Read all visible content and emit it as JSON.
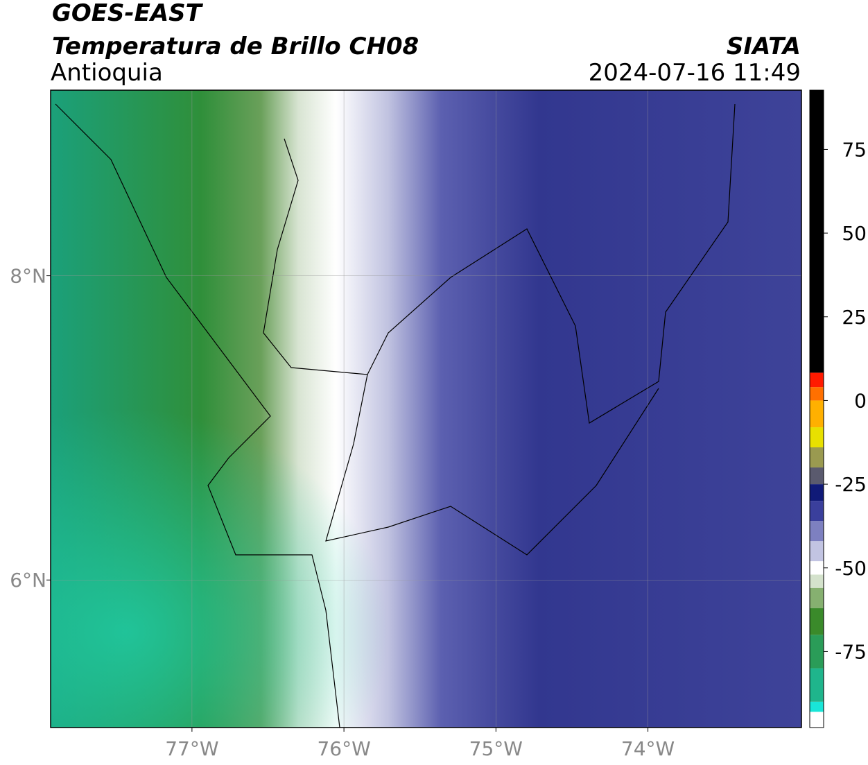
{
  "header": {
    "title": "GOES-EAST",
    "subtitle": "Temperatura de Brillo CH08",
    "source": "SIATA",
    "region": "Antioquia",
    "timestamp": "2024-07-16 11:49"
  },
  "map": {
    "xlim": [
      -77.93,
      -72.99
    ],
    "ylim": [
      5.03,
      9.22
    ],
    "xticks": [
      {
        "value": -77,
        "label": "77°W"
      },
      {
        "value": -76,
        "label": "76°W"
      },
      {
        "value": -75,
        "label": "75°W"
      },
      {
        "value": -74,
        "label": "74°W"
      }
    ],
    "yticks": [
      {
        "value": 8,
        "label": "8°N"
      },
      {
        "value": 6,
        "label": "6°N"
      }
    ],
    "grid": true
  },
  "colorbar": {
    "ylim": [
      -97.7,
      92.7
    ],
    "ticks": [
      75,
      50,
      25,
      0,
      -25,
      -50,
      -75
    ],
    "stops": [
      {
        "from": -97.7,
        "to": -93,
        "color": "#ffffff"
      },
      {
        "from": -93,
        "to": -90,
        "color": "#19e6d8"
      },
      {
        "from": -90,
        "to": -80,
        "color": "#1fb58c"
      },
      {
        "from": -80,
        "to": -70,
        "color": "#2a9c58"
      },
      {
        "from": -70,
        "to": -62,
        "color": "#3a8a2a"
      },
      {
        "from": -62,
        "to": -56,
        "color": "#86b070"
      },
      {
        "from": -56,
        "to": -52,
        "color": "#d4e2cc"
      },
      {
        "from": -52,
        "to": -48,
        "color": "#ffffff"
      },
      {
        "from": -48,
        "to": -42,
        "color": "#c2c4e2"
      },
      {
        "from": -42,
        "to": -36,
        "color": "#7d80c0"
      },
      {
        "from": -36,
        "to": -30,
        "color": "#3a3f9c"
      },
      {
        "from": -30,
        "to": -25,
        "color": "#101a78"
      },
      {
        "from": -25,
        "to": -20,
        "color": "#5a5a6e"
      },
      {
        "from": -20,
        "to": -14,
        "color": "#9a9a50"
      },
      {
        "from": -14,
        "to": -8,
        "color": "#e8e000"
      },
      {
        "from": -8,
        "to": 0,
        "color": "#ffb000"
      },
      {
        "from": 0,
        "to": 4,
        "color": "#ff7000"
      },
      {
        "from": 4,
        "to": 8.3,
        "color": "#ff1a00"
      },
      {
        "from": 8.3,
        "to": 92.7,
        "color": "#000000"
      }
    ]
  }
}
